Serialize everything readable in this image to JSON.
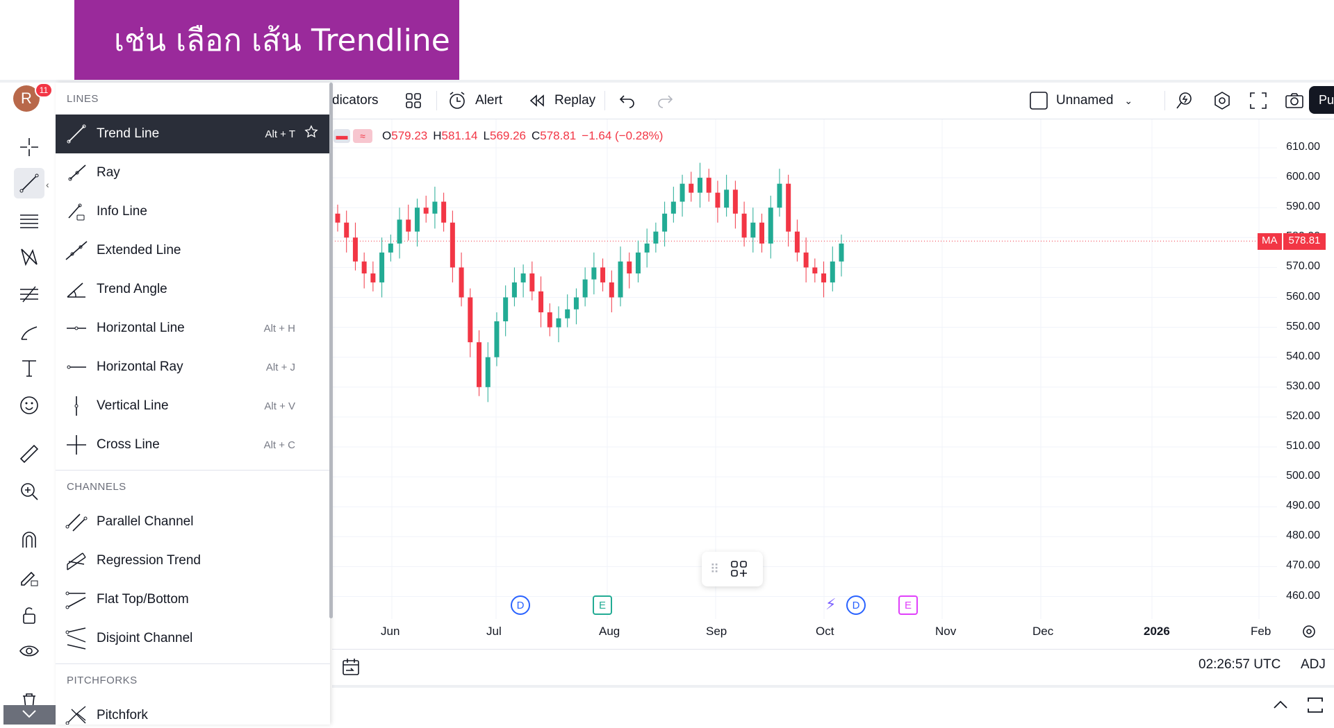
{
  "banner": {
    "text": "เช่น เลือก เส้น Trendline"
  },
  "user": {
    "initial": "R",
    "badge": "11"
  },
  "top_toolbar": {
    "indicators": "dicators",
    "alert": "Alert",
    "replay": "Replay",
    "layout_name": "Unnamed",
    "publish": "Pu"
  },
  "dropdown": {
    "sections": [
      {
        "title": "LINES",
        "items": [
          {
            "label": "Trend Line",
            "shortcut": "Alt + T",
            "icon": "trend-line-icon",
            "active": true
          },
          {
            "label": "Ray",
            "shortcut": "",
            "icon": "ray-icon"
          },
          {
            "label": "Info Line",
            "shortcut": "",
            "icon": "info-line-icon"
          },
          {
            "label": "Extended Line",
            "shortcut": "",
            "icon": "extended-line-icon"
          },
          {
            "label": "Trend Angle",
            "shortcut": "",
            "icon": "trend-angle-icon"
          },
          {
            "label": "Horizontal Line",
            "shortcut": "Alt + H",
            "icon": "horizontal-line-icon"
          },
          {
            "label": "Horizontal Ray",
            "shortcut": "Alt + J",
            "icon": "horizontal-ray-icon"
          },
          {
            "label": "Vertical Line",
            "shortcut": "Alt + V",
            "icon": "vertical-line-icon"
          },
          {
            "label": "Cross Line",
            "shortcut": "Alt + C",
            "icon": "cross-line-icon"
          }
        ]
      },
      {
        "title": "CHANNELS",
        "items": [
          {
            "label": "Parallel Channel",
            "shortcut": "",
            "icon": "parallel-channel-icon"
          },
          {
            "label": "Regression Trend",
            "shortcut": "",
            "icon": "regression-trend-icon"
          },
          {
            "label": "Flat Top/Bottom",
            "shortcut": "",
            "icon": "flat-top-bottom-icon"
          },
          {
            "label": "Disjoint Channel",
            "shortcut": "",
            "icon": "disjoint-channel-icon"
          }
        ]
      },
      {
        "title": "PITCHFORKS",
        "items": [
          {
            "label": "Pitchfork",
            "shortcut": "",
            "icon": "pitchfork-icon"
          }
        ]
      }
    ]
  },
  "legend": {
    "o_label": "O",
    "o": "579.23",
    "h_label": "H",
    "h": "581.14",
    "l_label": "L",
    "l": "569.26",
    "c_label": "C",
    "c": "578.81",
    "change": "−1.64 (−0.28%)"
  },
  "price_axis": [
    "610.00",
    "600.00",
    "590.00",
    "580.00",
    "570.00",
    "560.00",
    "550.00",
    "540.00",
    "530.00",
    "520.00",
    "510.00",
    "500.00",
    "490.00",
    "480.00",
    "470.00",
    "460.00"
  ],
  "ma_tag": {
    "label": "MA",
    "value": "578.81"
  },
  "time_axis": [
    {
      "label": "Jun"
    },
    {
      "label": "Jul"
    },
    {
      "label": "Aug"
    },
    {
      "label": "Sep"
    },
    {
      "label": "Oct"
    },
    {
      "label": "Nov"
    },
    {
      "label": "Dec"
    },
    {
      "label": "2026",
      "bold": true
    },
    {
      "label": "Feb"
    }
  ],
  "events": [
    {
      "type": "D"
    },
    {
      "type": "E"
    },
    {
      "type": "D"
    },
    {
      "type": "E"
    }
  ],
  "bottom": {
    "time": "02:26:57 UTC",
    "adj": "ADJ"
  },
  "colors": {
    "up": "#22ab94",
    "down": "#f23645",
    "banner": "#9a2a9b"
  },
  "chart_data": {
    "type": "candlestick",
    "ylim": [
      455,
      615
    ],
    "x_labels": [
      "Jun",
      "Jul",
      "Aug",
      "Sep",
      "Oct",
      "Nov",
      "Dec",
      "2026",
      "Feb"
    ],
    "closes": [
      585,
      580,
      572,
      568,
      565,
      575,
      578,
      586,
      582,
      590,
      588,
      592,
      585,
      570,
      560,
      545,
      530,
      540,
      552,
      560,
      565,
      568,
      562,
      555,
      550,
      553,
      556,
      560,
      566,
      570,
      565,
      560,
      572,
      568,
      575,
      578,
      582,
      588,
      592,
      598,
      595,
      600,
      595,
      590,
      596,
      588,
      580,
      585,
      578,
      590,
      598,
      582,
      575,
      570,
      568,
      565,
      572,
      578
    ]
  }
}
